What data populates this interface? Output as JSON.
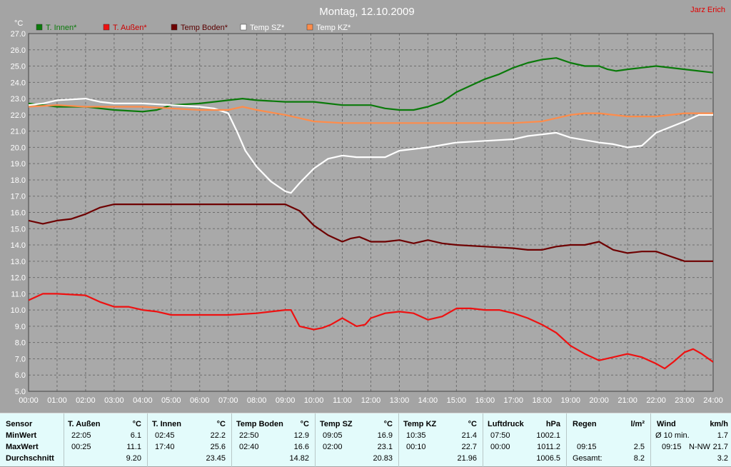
{
  "title": "Montag, 12.10.2009",
  "author": "Jarz Erich",
  "legend": [
    {
      "label": "T. Innen*",
      "color": "#0a7a0a",
      "text_color": "#0a7a0a"
    },
    {
      "label": "T. Außen*",
      "color": "#ee1111",
      "text_color": "#cc0000"
    },
    {
      "label": "Temp Boden*",
      "color": "#6e0000",
      "text_color": "#5a0000"
    },
    {
      "label": "Temp SZ*",
      "color": "#ffffff",
      "text_color": "#ffffff"
    },
    {
      "label": "Temp KZ*",
      "color": "#ff8c4a",
      "text_color": "#ffffff"
    }
  ],
  "chart_data": {
    "type": "line",
    "title": "Montag, 12.10.2009",
    "ylabel": "°C",
    "xlabel": "",
    "xlim": [
      0,
      24
    ],
    "ylim": [
      5,
      27
    ],
    "grid": true,
    "legend_position": "top-left",
    "x_ticks": [
      "00:00",
      "01:00",
      "02:00",
      "03:00",
      "04:00",
      "05:00",
      "06:00",
      "07:00",
      "08:00",
      "09:00",
      "10:00",
      "11:00",
      "12:00",
      "13:00",
      "14:00",
      "15:00",
      "16:00",
      "17:00",
      "18:00",
      "19:00",
      "20:00",
      "21:00",
      "22:00",
      "23:00",
      "24:00"
    ],
    "y_ticks": [
      "5.0",
      "6.0",
      "7.0",
      "8.0",
      "9.0",
      "10.0",
      "11.0",
      "12.0",
      "13.0",
      "14.0",
      "15.0",
      "16.0",
      "17.0",
      "18.0",
      "19.0",
      "20.0",
      "21.0",
      "22.0",
      "23.0",
      "24.0",
      "25.0",
      "26.0",
      "27.0"
    ],
    "series": [
      {
        "name": "T. Innen*",
        "color": "#0a7a0a",
        "points": [
          [
            0,
            22.7
          ],
          [
            0.5,
            22.6
          ],
          [
            1,
            22.5
          ],
          [
            2,
            22.5
          ],
          [
            2.5,
            22.4
          ],
          [
            3,
            22.3
          ],
          [
            4,
            22.2
          ],
          [
            4.5,
            22.3
          ],
          [
            5,
            22.6
          ],
          [
            6,
            22.7
          ],
          [
            7,
            22.9
          ],
          [
            7.5,
            23.0
          ],
          [
            8,
            22.9
          ],
          [
            9,
            22.8
          ],
          [
            9.5,
            22.8
          ],
          [
            10,
            22.8
          ],
          [
            11,
            22.6
          ],
          [
            12,
            22.6
          ],
          [
            12.5,
            22.4
          ],
          [
            13,
            22.3
          ],
          [
            13.5,
            22.3
          ],
          [
            14,
            22.5
          ],
          [
            14.5,
            22.8
          ],
          [
            15,
            23.4
          ],
          [
            15.5,
            23.8
          ],
          [
            16,
            24.2
          ],
          [
            16.5,
            24.5
          ],
          [
            17,
            24.9
          ],
          [
            17.5,
            25.2
          ],
          [
            18,
            25.4
          ],
          [
            18.5,
            25.5
          ],
          [
            19,
            25.2
          ],
          [
            19.5,
            25.0
          ],
          [
            20,
            25.0
          ],
          [
            20.3,
            24.8
          ],
          [
            20.6,
            24.7
          ],
          [
            21,
            24.8
          ],
          [
            21.5,
            24.9
          ],
          [
            22,
            25.0
          ],
          [
            23,
            24.8
          ],
          [
            24,
            24.6
          ]
        ]
      },
      {
        "name": "T. Außen*",
        "color": "#ee1111",
        "points": [
          [
            0,
            10.6
          ],
          [
            0.5,
            11.0
          ],
          [
            1,
            11.0
          ],
          [
            2,
            10.9
          ],
          [
            2.5,
            10.5
          ],
          [
            3,
            10.2
          ],
          [
            3.5,
            10.2
          ],
          [
            4,
            10.0
          ],
          [
            4.5,
            9.9
          ],
          [
            5,
            9.7
          ],
          [
            6,
            9.7
          ],
          [
            7,
            9.7
          ],
          [
            8,
            9.8
          ],
          [
            8.5,
            9.9
          ],
          [
            9,
            10.0
          ],
          [
            9.2,
            10.0
          ],
          [
            9.5,
            9.0
          ],
          [
            10,
            8.8
          ],
          [
            10.3,
            8.9
          ],
          [
            10.6,
            9.1
          ],
          [
            11,
            9.5
          ],
          [
            11.5,
            9.0
          ],
          [
            11.8,
            9.1
          ],
          [
            12,
            9.5
          ],
          [
            12.5,
            9.8
          ],
          [
            13,
            9.9
          ],
          [
            13.5,
            9.8
          ],
          [
            14,
            9.4
          ],
          [
            14.5,
            9.6
          ],
          [
            15,
            10.1
          ],
          [
            15.5,
            10.1
          ],
          [
            16,
            10.0
          ],
          [
            16.5,
            10.0
          ],
          [
            17,
            9.8
          ],
          [
            17.5,
            9.5
          ],
          [
            18,
            9.1
          ],
          [
            18.5,
            8.6
          ],
          [
            19,
            7.8
          ],
          [
            19.5,
            7.3
          ],
          [
            20,
            6.9
          ],
          [
            20.5,
            7.1
          ],
          [
            21,
            7.3
          ],
          [
            21.5,
            7.1
          ],
          [
            22,
            6.7
          ],
          [
            22.3,
            6.4
          ],
          [
            22.6,
            6.8
          ],
          [
            23,
            7.4
          ],
          [
            23.3,
            7.6
          ],
          [
            23.6,
            7.3
          ],
          [
            24,
            6.8
          ]
        ]
      },
      {
        "name": "Temp Boden*",
        "color": "#6e0000",
        "points": [
          [
            0,
            15.5
          ],
          [
            0.5,
            15.3
          ],
          [
            1,
            15.5
          ],
          [
            1.5,
            15.6
          ],
          [
            2,
            15.9
          ],
          [
            2.5,
            16.3
          ],
          [
            3,
            16.5
          ],
          [
            4,
            16.5
          ],
          [
            5,
            16.5
          ],
          [
            6,
            16.5
          ],
          [
            7,
            16.5
          ],
          [
            8,
            16.5
          ],
          [
            9,
            16.5
          ],
          [
            9.5,
            16.1
          ],
          [
            10,
            15.2
          ],
          [
            10.5,
            14.6
          ],
          [
            11,
            14.2
          ],
          [
            11.3,
            14.4
          ],
          [
            11.6,
            14.5
          ],
          [
            12,
            14.2
          ],
          [
            12.5,
            14.2
          ],
          [
            13,
            14.3
          ],
          [
            13.5,
            14.1
          ],
          [
            14,
            14.3
          ],
          [
            14.5,
            14.1
          ],
          [
            15,
            14.0
          ],
          [
            16,
            13.9
          ],
          [
            17,
            13.8
          ],
          [
            17.5,
            13.7
          ],
          [
            18,
            13.7
          ],
          [
            18.5,
            13.9
          ],
          [
            19,
            14.0
          ],
          [
            19.5,
            14.0
          ],
          [
            20,
            14.2
          ],
          [
            20.5,
            13.7
          ],
          [
            21,
            13.5
          ],
          [
            21.5,
            13.6
          ],
          [
            22,
            13.6
          ],
          [
            22.5,
            13.3
          ],
          [
            23,
            13.0
          ],
          [
            24,
            13.0
          ]
        ]
      },
      {
        "name": "Temp SZ*",
        "color": "#ffffff",
        "points": [
          [
            0,
            22.6
          ],
          [
            0.5,
            22.7
          ],
          [
            1,
            22.9
          ],
          [
            2,
            23.0
          ],
          [
            2.5,
            22.8
          ],
          [
            3,
            22.7
          ],
          [
            4,
            22.7
          ],
          [
            5,
            22.6
          ],
          [
            6,
            22.5
          ],
          [
            6.5,
            22.4
          ],
          [
            7,
            22.1
          ],
          [
            7.3,
            21.0
          ],
          [
            7.6,
            19.8
          ],
          [
            8,
            18.8
          ],
          [
            8.5,
            17.9
          ],
          [
            9,
            17.3
          ],
          [
            9.2,
            17.2
          ],
          [
            9.5,
            17.8
          ],
          [
            10,
            18.7
          ],
          [
            10.5,
            19.3
          ],
          [
            11,
            19.5
          ],
          [
            11.5,
            19.4
          ],
          [
            12,
            19.4
          ],
          [
            12.5,
            19.4
          ],
          [
            13,
            19.8
          ],
          [
            14,
            20.0
          ],
          [
            15,
            20.3
          ],
          [
            16,
            20.4
          ],
          [
            17,
            20.5
          ],
          [
            17.5,
            20.7
          ],
          [
            18,
            20.8
          ],
          [
            18.5,
            20.9
          ],
          [
            19,
            20.6
          ],
          [
            20,
            20.3
          ],
          [
            20.5,
            20.2
          ],
          [
            21,
            20.0
          ],
          [
            21.5,
            20.1
          ],
          [
            22,
            20.9
          ],
          [
            23,
            21.6
          ],
          [
            23.5,
            22.0
          ],
          [
            24,
            22.0
          ]
        ]
      },
      {
        "name": "Temp KZ*",
        "color": "#ff8c4a",
        "points": [
          [
            0,
            22.5
          ],
          [
            1,
            22.6
          ],
          [
            2,
            22.5
          ],
          [
            3,
            22.5
          ],
          [
            4,
            22.5
          ],
          [
            5,
            22.4
          ],
          [
            6,
            22.3
          ],
          [
            7,
            22.3
          ],
          [
            7.5,
            22.5
          ],
          [
            8,
            22.3
          ],
          [
            9,
            22.0
          ],
          [
            9.5,
            21.8
          ],
          [
            10,
            21.6
          ],
          [
            11,
            21.5
          ],
          [
            12,
            21.5
          ],
          [
            13,
            21.5
          ],
          [
            14,
            21.5
          ],
          [
            15,
            21.5
          ],
          [
            16,
            21.5
          ],
          [
            17,
            21.5
          ],
          [
            18,
            21.6
          ],
          [
            18.5,
            21.8
          ],
          [
            19,
            22.0
          ],
          [
            19.5,
            22.1
          ],
          [
            20,
            22.1
          ],
          [
            20.5,
            22.0
          ],
          [
            21,
            21.9
          ],
          [
            22,
            21.9
          ],
          [
            22.5,
            22.0
          ],
          [
            23,
            22.1
          ],
          [
            24,
            22.1
          ]
        ]
      }
    ]
  },
  "stats": {
    "columns": [
      {
        "header": "Sensor",
        "unit": "",
        "rows": [
          [
            "MinWert",
            "",
            ""
          ],
          [
            "MaxWert",
            "",
            ""
          ],
          [
            "Durchschnitt",
            "",
            ""
          ]
        ]
      },
      {
        "header": "T. Außen",
        "unit": "°C",
        "rows": [
          [
            "22:05",
            "",
            "6.1"
          ],
          [
            "00:25",
            "",
            "11.1"
          ],
          [
            "",
            "",
            "9.20"
          ]
        ]
      },
      {
        "header": "T. Innen",
        "unit": "°C",
        "rows": [
          [
            "02:45",
            "",
            "22.2"
          ],
          [
            "17:40",
            "",
            "25.6"
          ],
          [
            "",
            "",
            "23.45"
          ]
        ]
      },
      {
        "header": "Temp Boden",
        "unit": "°C",
        "rows": [
          [
            "22:50",
            "",
            "12.9"
          ],
          [
            "02:40",
            "",
            "16.6"
          ],
          [
            "",
            "",
            "14.82"
          ]
        ]
      },
      {
        "header": "Temp SZ",
        "unit": "°C",
        "rows": [
          [
            "09:05",
            "",
            "16.9"
          ],
          [
            "02:00",
            "",
            "23.1"
          ],
          [
            "",
            "",
            "20.83"
          ]
        ]
      },
      {
        "header": "Temp KZ",
        "unit": "°C",
        "rows": [
          [
            "10:35",
            "",
            "21.4"
          ],
          [
            "00:10",
            "",
            "22.7"
          ],
          [
            "",
            "",
            "21.96"
          ]
        ]
      },
      {
        "header": "Luftdruck",
        "unit": "hPa",
        "rows": [
          [
            "07:50",
            "",
            "1002.1"
          ],
          [
            "00:00",
            "",
            "1011.2"
          ],
          [
            "",
            "",
            "1006.5"
          ]
        ]
      },
      {
        "header": "Regen",
        "unit": "l/m²",
        "rows": [
          [
            "",
            "",
            ""
          ],
          [
            "09:15",
            "",
            "2.5"
          ],
          [
            "Gesamt:",
            "",
            "8.2"
          ]
        ]
      },
      {
        "header": "Wind",
        "unit": "km/h",
        "rows": [
          [
            "Ø 10 min.",
            "",
            "1.7"
          ],
          [
            "09:15",
            "N-NW",
            "21.7"
          ],
          [
            "",
            "",
            "3.2"
          ]
        ]
      }
    ]
  }
}
